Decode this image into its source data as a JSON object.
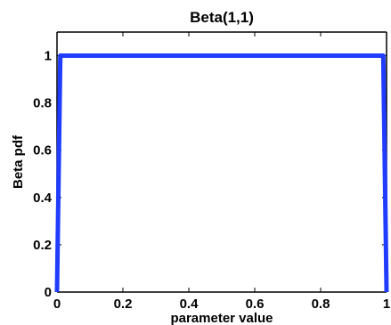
{
  "chart_data": {
    "type": "line",
    "title": "Beta(1,1)",
    "xlabel": "parameter value",
    "ylabel": "Beta pdf",
    "xlim": [
      0,
      1
    ],
    "ylim": [
      0,
      1.1
    ],
    "grid": false,
    "x_ticks": [
      0,
      0.2,
      0.4,
      0.6,
      0.8,
      1
    ],
    "x_tick_labels": [
      "0",
      "0.2",
      "0.4",
      "0.6",
      "0.8",
      "1"
    ],
    "y_ticks": [
      0,
      0.2,
      0.4,
      0.6,
      0.8,
      1
    ],
    "y_tick_labels": [
      "0",
      "0.2",
      "0.4",
      "0.6",
      "0.8",
      "1"
    ],
    "series": [
      {
        "color": "#1f3cff",
        "x": [
          0,
          0.01,
          0.99,
          1
        ],
        "y": [
          0,
          1,
          1,
          0
        ]
      }
    ]
  }
}
